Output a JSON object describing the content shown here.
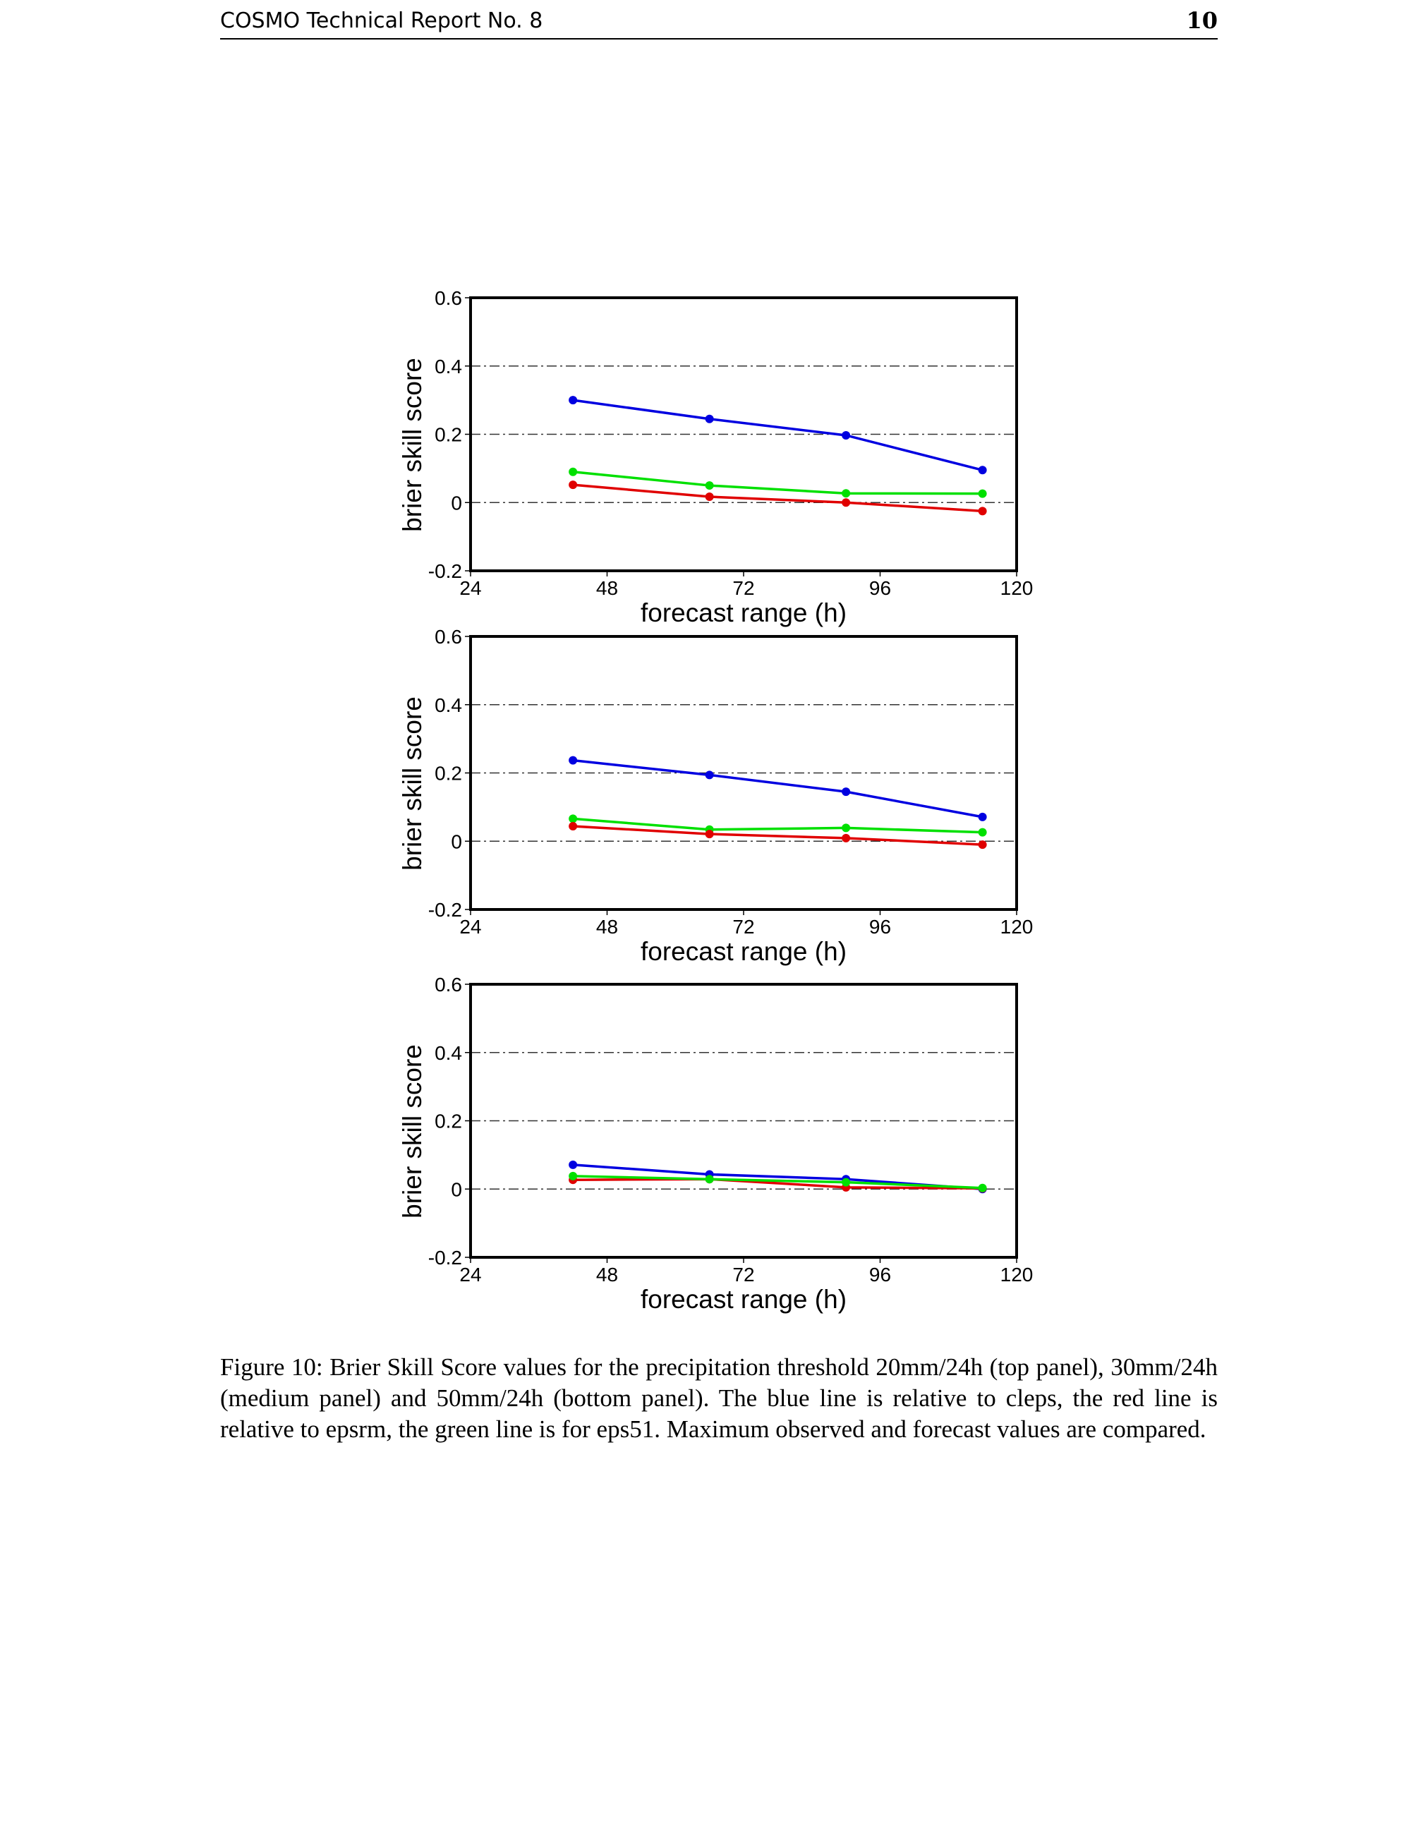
{
  "header": {
    "title": "COSMO Technical Report No. 8",
    "page_number": "10"
  },
  "chart_data": [
    {
      "type": "line",
      "panel": "top",
      "xlabel": "forecast range (h)",
      "ylabel": "brier skill score",
      "xlim": [
        24,
        120
      ],
      "ylim": [
        -0.2,
        0.6
      ],
      "xticks": [
        "24",
        "48",
        "72",
        "96",
        "120"
      ],
      "yticks": [
        "-0.2",
        "0",
        "0.2",
        "0.4",
        "0.6"
      ],
      "grid": "horizontal dash-dot",
      "x": [
        42,
        66,
        90,
        114
      ],
      "series": [
        {
          "name": "cleps",
          "color": "#0000e0",
          "values": [
            0.3,
            0.245,
            0.197,
            0.095
          ]
        },
        {
          "name": "eps51",
          "color": "#00e000",
          "values": [
            0.09,
            0.05,
            0.027,
            0.026
          ]
        },
        {
          "name": "epsrm",
          "color": "#e00000",
          "values": [
            0.052,
            0.017,
            0.0,
            -0.025
          ]
        }
      ]
    },
    {
      "type": "line",
      "panel": "medium",
      "xlabel": "forecast range (h)",
      "ylabel": "brier skill score",
      "xlim": [
        24,
        120
      ],
      "ylim": [
        -0.2,
        0.6
      ],
      "xticks": [
        "24",
        "48",
        "72",
        "96",
        "120"
      ],
      "yticks": [
        "-0.2",
        "0",
        "0.2",
        "0.4",
        "0.6"
      ],
      "grid": "horizontal dash-dot",
      "x": [
        42,
        66,
        90,
        114
      ],
      "series": [
        {
          "name": "cleps",
          "color": "#0000e0",
          "values": [
            0.237,
            0.194,
            0.145,
            0.071
          ]
        },
        {
          "name": "eps51",
          "color": "#00e000",
          "values": [
            0.066,
            0.034,
            0.039,
            0.026
          ]
        },
        {
          "name": "epsrm",
          "color": "#e00000",
          "values": [
            0.044,
            0.021,
            0.009,
            -0.01
          ]
        }
      ]
    },
    {
      "type": "line",
      "panel": "bottom",
      "xlabel": "forecast range (h)",
      "ylabel": "brier skill score",
      "xlim": [
        24,
        120
      ],
      "ylim": [
        -0.2,
        0.6
      ],
      "xticks": [
        "24",
        "48",
        "72",
        "96",
        "120"
      ],
      "yticks": [
        "-0.2",
        "0",
        "0.2",
        "0.4",
        "0.6"
      ],
      "grid": "horizontal dash-dot",
      "x": [
        42,
        66,
        90,
        114
      ],
      "series": [
        {
          "name": "cleps",
          "color": "#0000e0",
          "values": [
            0.071,
            0.043,
            0.029,
            0.0
          ]
        },
        {
          "name": "epsrm",
          "color": "#e00000",
          "values": [
            0.027,
            0.029,
            0.005,
            0.002
          ]
        },
        {
          "name": "eps51",
          "color": "#00e000",
          "values": [
            0.038,
            0.029,
            0.02,
            0.003
          ]
        }
      ]
    }
  ],
  "caption": "Figure 10: Brier Skill Score values for the precipitation threshold 20mm/24h (top panel), 30mm/24h (medium panel) and 50mm/24h (bottom panel). The blue line is relative to cleps, the red line is relative to epsrm, the green line is for eps51. Maximum observed and forecast values are compared."
}
